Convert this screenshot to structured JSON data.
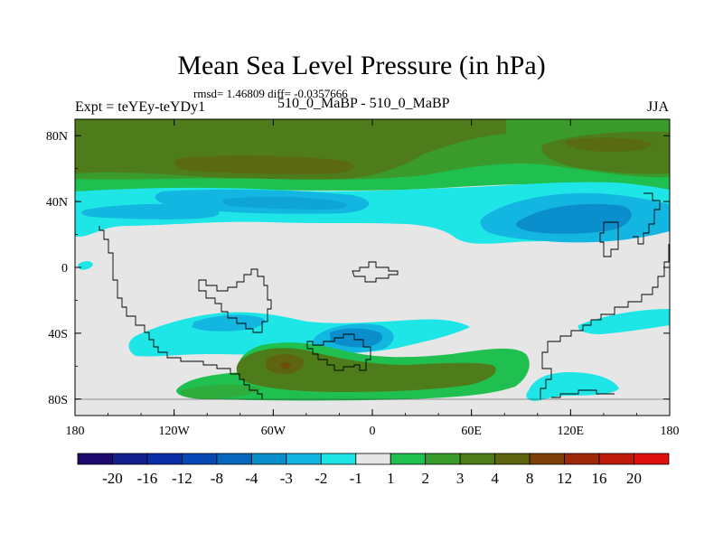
{
  "chart_data": {
    "type": "heatmap",
    "title": "Mean Sea Level Pressure (in hPa)",
    "stats_text": "rmsd= 1.46809 diff= -0.0357666",
    "left_label": "Expt = teYEy-teYDy1",
    "center_label": "510_0_MaBP - 510_0_MaBP",
    "right_label": "JJA",
    "x_ticks": [
      {
        "lon": -180,
        "label": "180"
      },
      {
        "lon": -120,
        "label": "120W"
      },
      {
        "lon": -60,
        "label": "60W"
      },
      {
        "lon": 0,
        "label": "0"
      },
      {
        "lon": 60,
        "label": "60E"
      },
      {
        "lon": 120,
        "label": "120E"
      },
      {
        "lon": 180,
        "label": "180"
      }
    ],
    "y_ticks": [
      {
        "lat": 80,
        "label": "80N"
      },
      {
        "lat": 40,
        "label": "40N"
      },
      {
        "lat": 0,
        "label": "0"
      },
      {
        "lat": -40,
        "label": "40S"
      },
      {
        "lat": -80,
        "label": "80S"
      }
    ],
    "lon_range": [
      -180,
      180
    ],
    "lat_range": [
      -90,
      90
    ],
    "colorbar": {
      "levels": [
        "-20",
        "-16",
        "-12",
        "-8",
        "-4",
        "-3",
        "-2",
        "-1",
        "1",
        "2",
        "3",
        "4",
        "8",
        "12",
        "16",
        "20"
      ],
      "colors": [
        "#1e0a6e",
        "#131f8e",
        "#0a2fa6",
        "#0848b4",
        "#0867bc",
        "#0b8fcc",
        "#13b6e0",
        "#1ee6e6",
        "#e6e6e6",
        "#20c050",
        "#3a9a2c",
        "#4e7c1a",
        "#5e6410",
        "#7e3e0a",
        "#a0280a",
        "#c01a0a",
        "#e01010"
      ]
    },
    "background_color": "#e6e6e6",
    "regions": [
      {
        "id": "arctic-positive",
        "level": "2 to 3",
        "lon": [
          -180,
          180
        ],
        "lat": [
          48,
          90
        ]
      },
      {
        "id": "arctic-core-west",
        "level": "3 to 4",
        "lon": [
          -165,
          -30
        ],
        "lat": [
          57,
          82
        ]
      },
      {
        "id": "arctic-core-east",
        "level": "3 to 4",
        "lon": [
          118,
          170
        ],
        "lat": [
          65,
          82
        ]
      },
      {
        "id": "north-pacific-low",
        "level": "-2 to -1",
        "lon": [
          -180,
          180
        ],
        "lat": [
          25,
          48
        ]
      },
      {
        "id": "north-atlantic-low-core",
        "level": "-3 to -2",
        "lon": [
          -125,
          -70
        ],
        "lat": [
          33,
          43
        ]
      },
      {
        "id": "eastern-hemisphere-low-core",
        "level": "-3 to -2",
        "lon": [
          95,
          150
        ],
        "lat": [
          28,
          43
        ]
      },
      {
        "id": "equatorial-low",
        "level": "-2 to -1",
        "lon": [
          -178,
          -168
        ],
        "lat": [
          -3,
          3
        ]
      },
      {
        "id": "southern-low-band",
        "level": "-2 to -1",
        "lon": [
          -120,
          20
        ],
        "lat": [
          -52,
          -25
        ]
      },
      {
        "id": "southern-low-core",
        "level": "-3 to -2",
        "lon": [
          -25,
          10
        ],
        "lat": [
          -48,
          -35
        ]
      },
      {
        "id": "south-indian-low",
        "level": "-2 to -1",
        "lon": [
          100,
          160
        ],
        "lat": [
          -82,
          -62
        ]
      },
      {
        "id": "southern-ocean-high",
        "level": "2 to 3",
        "lon": [
          -125,
          95
        ],
        "lat": [
          -90,
          -48
        ]
      },
      {
        "id": "southern-ocean-high-core",
        "level": "3 to 4",
        "lon": [
          -85,
          50
        ],
        "lat": [
          -82,
          -55
        ]
      },
      {
        "id": "southern-ocean-high-peak",
        "level": "4 to 8",
        "lon": [
          -60,
          -40
        ],
        "lat": [
          -68,
          -58
        ]
      }
    ]
  }
}
